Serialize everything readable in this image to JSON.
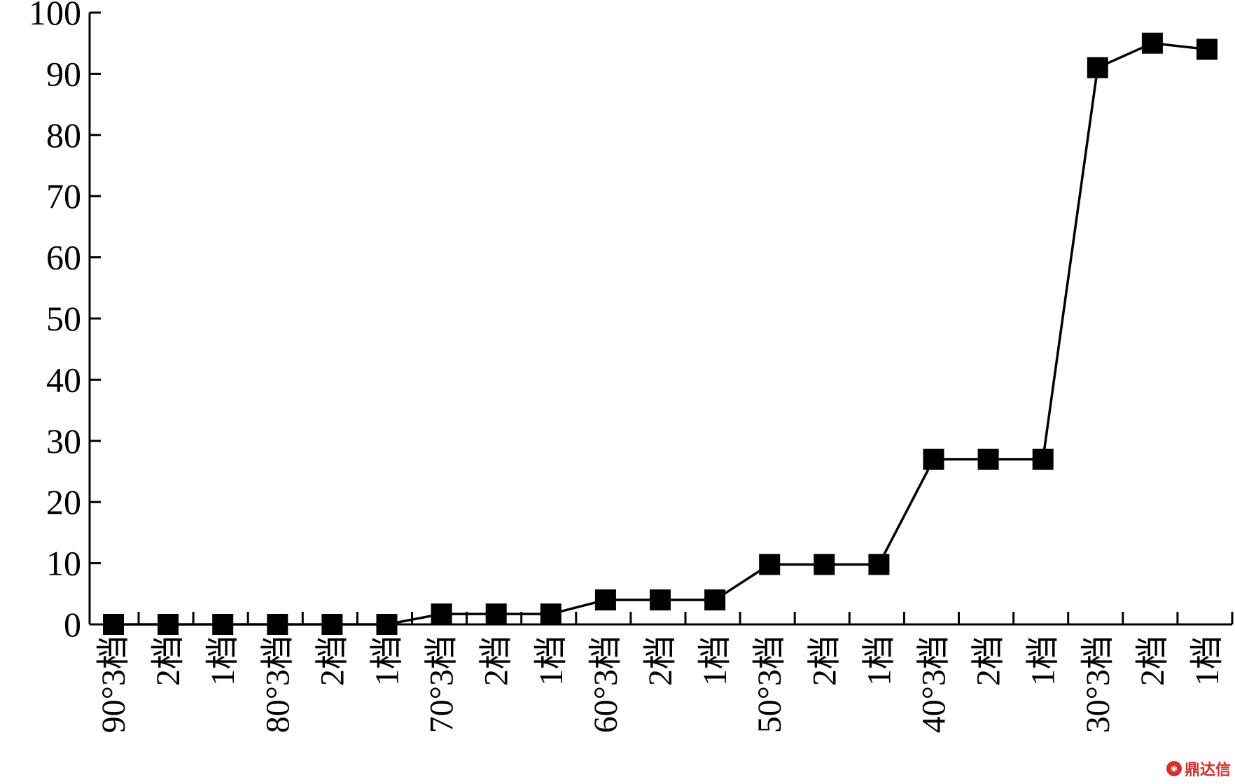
{
  "chart_data": {
    "type": "line",
    "title": "",
    "xlabel": "",
    "ylabel": "",
    "ylim": [
      0,
      100
    ],
    "yticks": [
      0,
      10,
      20,
      30,
      40,
      50,
      60,
      70,
      80,
      90,
      100
    ],
    "grid": false,
    "legend": "none",
    "marker": "square",
    "line_color": "#000000",
    "categories": [
      "90°3档",
      "2档",
      "1档",
      "80°3档",
      "2档",
      "1档",
      "70°3档",
      "2档",
      "1档",
      "60°3档",
      "2档",
      "1档",
      "50°3档",
      "2档",
      "1档",
      "40°3档",
      "2档",
      "1档",
      "30°3档",
      "2档",
      "1档"
    ],
    "series": [
      {
        "values": [
          0,
          0,
          0,
          0,
          0,
          0,
          1.7,
          1.7,
          1.7,
          4,
          4,
          4,
          9.8,
          9.8,
          9.8,
          27,
          27,
          27,
          91,
          95,
          94
        ]
      }
    ]
  },
  "watermark": {
    "text": "鼎达信",
    "logo_color": "#d32f2f"
  }
}
